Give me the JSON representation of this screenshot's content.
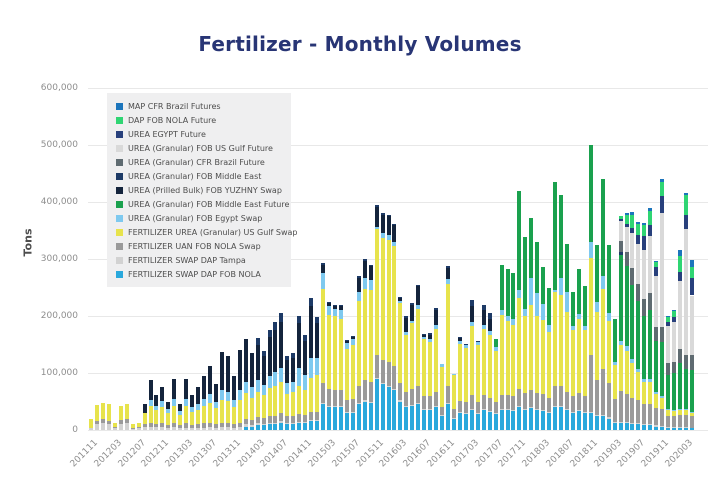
{
  "title": "Fertilizer - Monthly Volumes",
  "y_axis": {
    "title": "Tons",
    "tick_labels": [
      "0",
      "100,000",
      "200,000",
      "300,000",
      "400,000",
      "500,000",
      "600,000"
    ],
    "max_tons": 600000
  },
  "x_axis": {
    "tick_labels": [
      "201111",
      "201203",
      "201207",
      "201211",
      "201303",
      "201307",
      "201311",
      "201403",
      "201407",
      "201411",
      "201503",
      "201507",
      "201511",
      "201603",
      "201607",
      "201611",
      "201703",
      "201707",
      "201711",
      "201803",
      "201807",
      "201811",
      "201903",
      "201907",
      "201911",
      "202003"
    ],
    "tick_every_n_bars": 4
  },
  "colors": {
    "title_text": "#283575",
    "tick_text": "#8e8e8e",
    "grid": "#e8e8e8",
    "legend_bg": "#efeff0",
    "legend_text": "#4d4d4d",
    "background": "#ffffff"
  },
  "chart_data": {
    "type": "bar",
    "stacked": true,
    "title": "Fertilizer - Monthly Volumes",
    "ylabel": "Tons",
    "ylim": [
      0,
      600000
    ],
    "grid": true,
    "legend_position": "upper-left-inside",
    "n_months": 102,
    "first_month": "201111",
    "last_month": "202004",
    "values_unit": "thousand tons",
    "stack_note": "rows are bottom-to-top segments; series list is legend order top-to-bottom (reverse of stack order)",
    "series": [
      {
        "name": "MAP CFR Brazil Futures",
        "color": "#1c75bc"
      },
      {
        "name": "DAP FOB NOLA Future",
        "color": "#2fd573"
      },
      {
        "name": "UREA EGYPT Future",
        "color": "#28407c"
      },
      {
        "name": "UREA (Granular) FOB US Gulf Future",
        "color": "#d9d9d9"
      },
      {
        "name": "UREA (Granular) CFR Brazil Future",
        "color": "#5f6b71"
      },
      {
        "name": "UREA (Granular) FOB Middle East",
        "color": "#1d3a66"
      },
      {
        "name": "UREA (Prilled Bulk) FOB YUZHNY Swap",
        "color": "#14243c"
      },
      {
        "name": "UREA (Granular) FOB Middle East Future",
        "color": "#1aa14e"
      },
      {
        "name": "UREA (Granular) FOB Egypt Swap",
        "color": "#7ec9ef"
      },
      {
        "name": "FERTILIZER UREA (Granular) US Gulf Swap",
        "color": "#e7e34c"
      },
      {
        "name": "FERTILIZER UAN FOB NOLA Swap",
        "color": "#9a9a9a"
      },
      {
        "name": "FERTILIZER SWAP DAP Tampa",
        "color": "#d2d2d2"
      },
      {
        "name": "FERTILIZER SWAP DAP FOB NOLA",
        "color": "#29a8dc"
      }
    ],
    "rows_thousand_tons": [
      [
        0,
        4,
        0,
        16,
        0,
        0,
        0,
        0,
        0,
        0,
        0,
        0,
        0
      ],
      [
        0,
        10,
        6,
        28,
        0,
        0,
        0,
        0,
        0,
        0,
        0,
        0,
        0
      ],
      [
        0,
        12,
        8,
        28,
        0,
        0,
        0,
        0,
        0,
        0,
        0,
        0,
        0
      ],
      [
        0,
        10,
        6,
        30,
        0,
        0,
        0,
        0,
        0,
        0,
        0,
        0,
        0
      ],
      [
        0,
        3,
        2,
        8,
        0,
        0,
        0,
        0,
        0,
        0,
        0,
        0,
        0
      ],
      [
        0,
        10,
        8,
        25,
        0,
        0,
        0,
        0,
        0,
        0,
        0,
        0,
        0
      ],
      [
        0,
        12,
        8,
        25,
        0,
        0,
        0,
        0,
        0,
        0,
        0,
        0,
        0
      ],
      [
        0,
        2,
        2,
        7,
        0,
        0,
        0,
        0,
        0,
        0,
        0,
        0,
        0
      ],
      [
        0,
        3,
        2,
        8,
        0,
        0,
        0,
        0,
        0,
        0,
        0,
        0,
        0
      ],
      [
        0,
        5,
        5,
        20,
        0,
        0,
        15,
        0,
        0,
        0,
        0,
        0,
        0
      ],
      [
        0,
        5,
        8,
        30,
        10,
        0,
        35,
        0,
        0,
        0,
        0,
        0,
        0
      ],
      [
        0,
        5,
        5,
        25,
        8,
        0,
        18,
        0,
        0,
        0,
        0,
        0,
        0
      ],
      [
        0,
        5,
        8,
        28,
        10,
        0,
        25,
        0,
        0,
        0,
        0,
        0,
        0
      ],
      [
        0,
        4,
        5,
        20,
        8,
        0,
        12,
        0,
        0,
        0,
        0,
        0,
        0
      ],
      [
        0,
        5,
        8,
        30,
        12,
        0,
        35,
        0,
        0,
        0,
        0,
        0,
        0
      ],
      [
        0,
        3,
        5,
        18,
        8,
        0,
        12,
        0,
        0,
        0,
        0,
        0,
        0
      ],
      [
        0,
        4,
        8,
        30,
        12,
        0,
        36,
        0,
        0,
        0,
        0,
        0,
        0
      ],
      [
        0,
        3,
        6,
        22,
        10,
        0,
        20,
        0,
        0,
        0,
        0,
        0,
        0
      ],
      [
        0,
        4,
        6,
        25,
        10,
        0,
        30,
        0,
        0,
        0,
        0,
        0,
        0
      ],
      [
        0,
        4,
        8,
        30,
        13,
        0,
        40,
        0,
        0,
        0,
        0,
        0,
        0
      ],
      [
        0,
        5,
        8,
        35,
        15,
        0,
        50,
        0,
        0,
        0,
        0,
        0,
        0
      ],
      [
        0,
        4,
        6,
        28,
        12,
        0,
        30,
        0,
        0,
        0,
        0,
        0,
        0
      ],
      [
        0,
        5,
        8,
        40,
        18,
        0,
        65,
        0,
        0,
        0,
        0,
        0,
        0
      ],
      [
        0,
        5,
        8,
        38,
        16,
        0,
        62,
        0,
        0,
        0,
        0,
        0,
        0
      ],
      [
        0,
        4,
        6,
        30,
        13,
        0,
        42,
        0,
        0,
        0,
        0,
        0,
        0
      ],
      [
        0,
        5,
        8,
        40,
        17,
        0,
        70,
        0,
        0,
        0,
        0,
        0,
        0
      ],
      [
        5,
        5,
        10,
        45,
        20,
        0,
        75,
        0,
        0,
        0,
        0,
        0,
        0
      ],
      [
        5,
        4,
        8,
        40,
        18,
        0,
        60,
        0,
        0,
        0,
        0,
        0,
        0
      ],
      [
        8,
        4,
        10,
        45,
        20,
        0,
        62,
        12,
        0,
        0,
        0,
        0,
        0
      ],
      [
        8,
        3,
        10,
        40,
        18,
        0,
        50,
        10,
        0,
        0,
        0,
        0,
        0
      ],
      [
        10,
        3,
        12,
        48,
        22,
        0,
        68,
        12,
        0,
        0,
        0,
        0,
        0
      ],
      [
        10,
        3,
        12,
        52,
        24,
        0,
        75,
        14,
        0,
        0,
        0,
        0,
        0
      ],
      [
        12,
        3,
        14,
        55,
        25,
        0,
        80,
        16,
        0,
        0,
        0,
        0,
        0
      ],
      [
        10,
        2,
        12,
        40,
        18,
        0,
        40,
        8,
        0,
        0,
        0,
        0,
        0
      ],
      [
        10,
        2,
        12,
        42,
        18,
        0,
        43,
        8,
        0,
        0,
        0,
        0,
        0
      ],
      [
        12,
        2,
        14,
        50,
        30,
        0,
        80,
        12,
        0,
        0,
        0,
        0,
        0
      ],
      [
        12,
        2,
        12,
        45,
        25,
        0,
        60,
        10,
        0,
        0,
        0,
        0,
        0
      ],
      [
        15,
        2,
        15,
        60,
        35,
        0,
        90,
        15,
        0,
        0,
        0,
        0,
        0
      ],
      [
        15,
        2,
        15,
        65,
        30,
        0,
        60,
        12,
        0,
        0,
        0,
        0,
        0
      ],
      [
        45,
        2,
        35,
        165,
        28,
        0,
        15,
        3,
        0,
        0,
        0,
        0,
        0
      ],
      [
        40,
        2,
        30,
        130,
        15,
        0,
        5,
        2,
        0,
        0,
        0,
        0,
        0
      ],
      [
        40,
        2,
        28,
        130,
        12,
        0,
        5,
        3,
        0,
        0,
        0,
        0,
        0
      ],
      [
        40,
        2,
        28,
        125,
        15,
        0,
        8,
        2,
        0,
        0,
        0,
        0,
        0
      ],
      [
        30,
        2,
        20,
        90,
        10,
        0,
        5,
        1,
        0,
        0,
        0,
        0,
        0
      ],
      [
        30,
        2,
        22,
        95,
        10,
        0,
        5,
        1,
        0,
        0,
        0,
        0,
        0
      ],
      [
        45,
        2,
        30,
        150,
        15,
        0,
        25,
        3,
        0,
        0,
        0,
        0,
        0
      ],
      [
        50,
        2,
        35,
        160,
        20,
        0,
        30,
        3,
        0,
        0,
        0,
        0,
        0
      ],
      [
        48,
        2,
        35,
        160,
        18,
        0,
        25,
        2,
        0,
        0,
        0,
        0,
        0
      ],
      [
        90,
        2,
        40,
        220,
        5,
        0,
        35,
        3,
        0,
        0,
        0,
        0,
        0
      ],
      [
        80,
        2,
        40,
        215,
        8,
        0,
        32,
        3,
        0,
        0,
        0,
        0,
        0
      ],
      [
        75,
        2,
        42,
        215,
        8,
        0,
        33,
        3,
        0,
        0,
        0,
        0,
        0
      ],
      [
        70,
        2,
        40,
        210,
        8,
        0,
        29,
        3,
        0,
        0,
        0,
        0,
        0
      ],
      [
        50,
        2,
        30,
        140,
        5,
        0,
        5,
        1,
        0,
        0,
        0,
        0,
        0
      ],
      [
        40,
        2,
        25,
        100,
        5,
        0,
        25,
        3,
        0,
        0,
        0,
        0,
        0
      ],
      [
        42,
        2,
        28,
        115,
        5,
        0,
        27,
        3,
        0,
        0,
        0,
        0,
        0
      ],
      [
        45,
        2,
        30,
        135,
        8,
        0,
        32,
        3,
        0,
        0,
        0,
        0,
        0
      ],
      [
        35,
        2,
        22,
        100,
        5,
        0,
        2,
        1,
        0,
        0,
        0,
        0,
        0
      ],
      [
        35,
        2,
        22,
        95,
        5,
        0,
        8,
        3,
        0,
        0,
        0,
        0,
        0
      ],
      [
        40,
        2,
        25,
        110,
        7,
        0,
        27,
        3,
        0,
        0,
        0,
        0,
        0
      ],
      [
        25,
        1,
        15,
        70,
        4,
        0,
        0,
        0,
        0,
        0,
        0,
        0,
        0
      ],
      [
        45,
        2,
        30,
        180,
        8,
        0,
        20,
        3,
        0,
        0,
        0,
        0,
        0
      ],
      [
        20,
        1,
        15,
        60,
        2,
        0,
        0,
        0,
        0,
        0,
        0,
        0,
        0
      ],
      [
        30,
        1,
        20,
        100,
        5,
        0,
        5,
        2,
        0,
        0,
        0,
        0,
        0
      ],
      [
        28,
        1,
        20,
        95,
        5,
        0,
        0,
        1,
        0,
        0,
        0,
        0,
        0
      ],
      [
        35,
        2,
        25,
        120,
        8,
        0,
        28,
        10,
        0,
        0,
        0,
        0,
        0
      ],
      [
        28,
        1,
        20,
        100,
        5,
        0,
        0,
        1,
        0,
        0,
        0,
        0,
        0
      ],
      [
        35,
        2,
        25,
        115,
        8,
        0,
        25,
        10,
        0,
        0,
        0,
        0,
        0
      ],
      [
        32,
        2,
        22,
        110,
        8,
        0,
        20,
        11,
        0,
        0,
        0,
        0,
        0
      ],
      [
        28,
        1,
        20,
        90,
        6,
        15,
        0,
        0,
        0,
        0,
        0,
        0,
        0
      ],
      [
        35,
        2,
        25,
        140,
        8,
        80,
        0,
        0,
        0,
        0,
        0,
        0,
        0
      ],
      [
        35,
        2,
        25,
        130,
        8,
        83,
        0,
        0,
        0,
        0,
        0,
        0,
        0
      ],
      [
        33,
        2,
        25,
        125,
        10,
        80,
        0,
        0,
        0,
        0,
        0,
        0,
        0
      ],
      [
        40,
        2,
        30,
        160,
        13,
        175,
        0,
        0,
        0,
        0,
        0,
        0,
        0
      ],
      [
        35,
        2,
        28,
        135,
        13,
        125,
        0,
        0,
        0,
        0,
        0,
        0,
        0
      ],
      [
        38,
        2,
        30,
        150,
        47,
        105,
        0,
        0,
        0,
        0,
        0,
        0,
        0
      ],
      [
        35,
        2,
        28,
        135,
        40,
        90,
        0,
        0,
        0,
        0,
        0,
        0,
        0
      ],
      [
        33,
        2,
        28,
        130,
        28,
        65,
        0,
        0,
        0,
        0,
        0,
        0,
        0
      ],
      [
        30,
        2,
        25,
        115,
        13,
        65,
        0,
        0,
        0,
        0,
        0,
        0,
        0
      ],
      [
        40,
        2,
        35,
        165,
        3,
        190,
        0,
        0,
        0,
        0,
        0,
        0,
        0
      ],
      [
        40,
        2,
        35,
        160,
        30,
        145,
        0,
        0,
        0,
        0,
        0,
        0,
        0
      ],
      [
        35,
        2,
        30,
        140,
        35,
        85,
        0,
        0,
        0,
        0,
        0,
        0,
        0
      ],
      [
        30,
        2,
        28,
        115,
        8,
        60,
        0,
        0,
        0,
        0,
        0,
        0,
        0
      ],
      [
        33,
        2,
        30,
        130,
        8,
        80,
        0,
        0,
        0,
        0,
        0,
        0,
        0
      ],
      [
        30,
        2,
        28,
        115,
        8,
        70,
        0,
        0,
        0,
        0,
        0,
        0,
        0
      ],
      [
        30,
        2,
        100,
        170,
        28,
        170,
        0,
        0,
        0,
        0,
        0,
        0,
        0
      ],
      [
        25,
        2,
        60,
        120,
        18,
        100,
        0,
        0,
        0,
        0,
        0,
        0,
        0
      ],
      [
        25,
        2,
        80,
        140,
        23,
        170,
        0,
        0,
        0,
        0,
        0,
        0,
        0
      ],
      [
        20,
        2,
        60,
        110,
        13,
        120,
        0,
        0,
        0,
        0,
        0,
        0,
        0
      ],
      [
        12,
        2,
        40,
        60,
        6,
        75,
        0,
        0,
        0,
        0,
        0,
        0,
        0
      ],
      [
        12,
        2,
        55,
        80,
        8,
        150,
        0,
        5,
        20,
        35,
        3,
        5,
        0
      ],
      [
        12,
        2,
        50,
        75,
        8,
        140,
        0,
        0,
        25,
        45,
        5,
        15,
        3
      ],
      [
        10,
        2,
        45,
        60,
        8,
        130,
        0,
        0,
        30,
        60,
        10,
        22,
        5
      ],
      [
        10,
        2,
        40,
        50,
        5,
        120,
        0,
        0,
        30,
        70,
        15,
        20,
        3
      ],
      [
        8,
        2,
        35,
        40,
        5,
        110,
        0,
        0,
        30,
        85,
        25,
        20,
        3
      ],
      [
        8,
        2,
        35,
        40,
        5,
        120,
        0,
        0,
        30,
        100,
        20,
        25,
        5
      ],
      [
        6,
        2,
        30,
        25,
        3,
        90,
        0,
        0,
        25,
        90,
        15,
        8,
        3
      ],
      [
        5,
        2,
        30,
        20,
        3,
        95,
        0,
        0,
        25,
        200,
        30,
        25,
        5
      ],
      [
        4,
        1,
        20,
        10,
        2,
        60,
        0,
        0,
        20,
        65,
        8,
        8,
        2
      ],
      [
        4,
        1,
        20,
        8,
        2,
        65,
        0,
        0,
        20,
        70,
        8,
        10,
        2
      ],
      [
        4,
        1,
        22,
        8,
        2,
        80,
        0,
        0,
        25,
        120,
        15,
        28,
        10
      ],
      [
        4,
        1,
        22,
        8,
        2,
        70,
        0,
        0,
        25,
        220,
        25,
        35,
        3
      ],
      [
        3,
        1,
        20,
        5,
        2,
        75,
        0,
        0,
        25,
        105,
        30,
        20,
        12
      ]
    ]
  }
}
